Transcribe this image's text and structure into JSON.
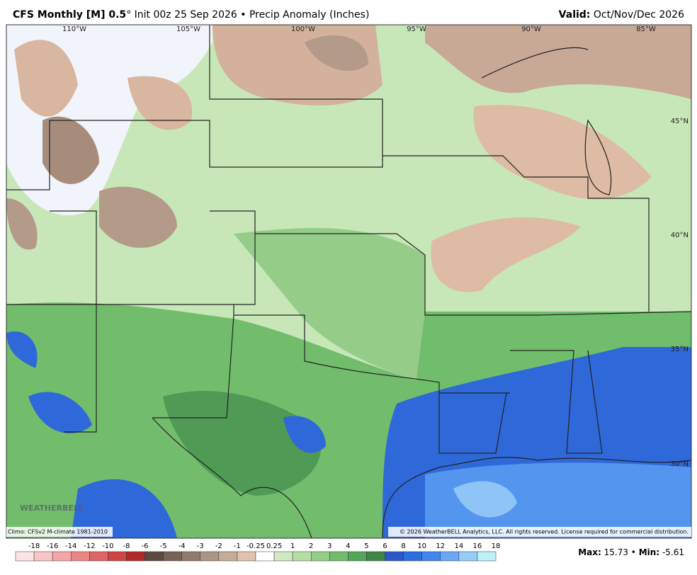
{
  "header": {
    "title_bold": "CFS Monthly [M] 0.5",
    "title_rest": "° Init 00z 25 Sep 2026 • Precip Anomaly (Inches)",
    "valid_label": "Valid:",
    "valid_value": "Oct/Nov/Dec 2026"
  },
  "map": {
    "longitudes": [
      "110°W",
      "105°W",
      "100°W",
      "95°W",
      "90°W",
      "85°W"
    ],
    "latitudes": [
      "45°N",
      "40°N",
      "35°N",
      "30°N"
    ],
    "watermark": "WEATHERBELL"
  },
  "footer": {
    "climo": "Climo: CFSv2 M-climate 1981-2010",
    "copyright": "© 2026 WeatherBELL Analytics, LLC. All rights reserved. License required for commercial distribution.",
    "max_label": "Max:",
    "max_value": "15.73",
    "separator": "•",
    "min_label": "Min:",
    "min_value": "-5.61"
  },
  "colorbar": {
    "labels": [
      "-18",
      "-16",
      "-14",
      "-12",
      "-10",
      "-8",
      "-6",
      "-5",
      "-4",
      "-3",
      "-2",
      "-1",
      "-0.25",
      "0.25",
      "1",
      "2",
      "3",
      "4",
      "5",
      "6",
      "8",
      "10",
      "12",
      "14",
      "16",
      "18"
    ],
    "colors": [
      "#fde4e4",
      "#f9c6c6",
      "#f4a6a6",
      "#ec8686",
      "#e06464",
      "#cf4444",
      "#b02a2a",
      "#5c4840",
      "#776256",
      "#917b6c",
      "#ab9585",
      "#c5ab99",
      "#e0c3ae",
      "#ffffff",
      "#cfeac2",
      "#b4dea6",
      "#93ce88",
      "#70bd6c",
      "#53a658",
      "#3e8647",
      "#2b58c8",
      "#2c6ddf",
      "#4186ee",
      "#69a8f4",
      "#96cdf8",
      "#bff1f8"
    ]
  }
}
